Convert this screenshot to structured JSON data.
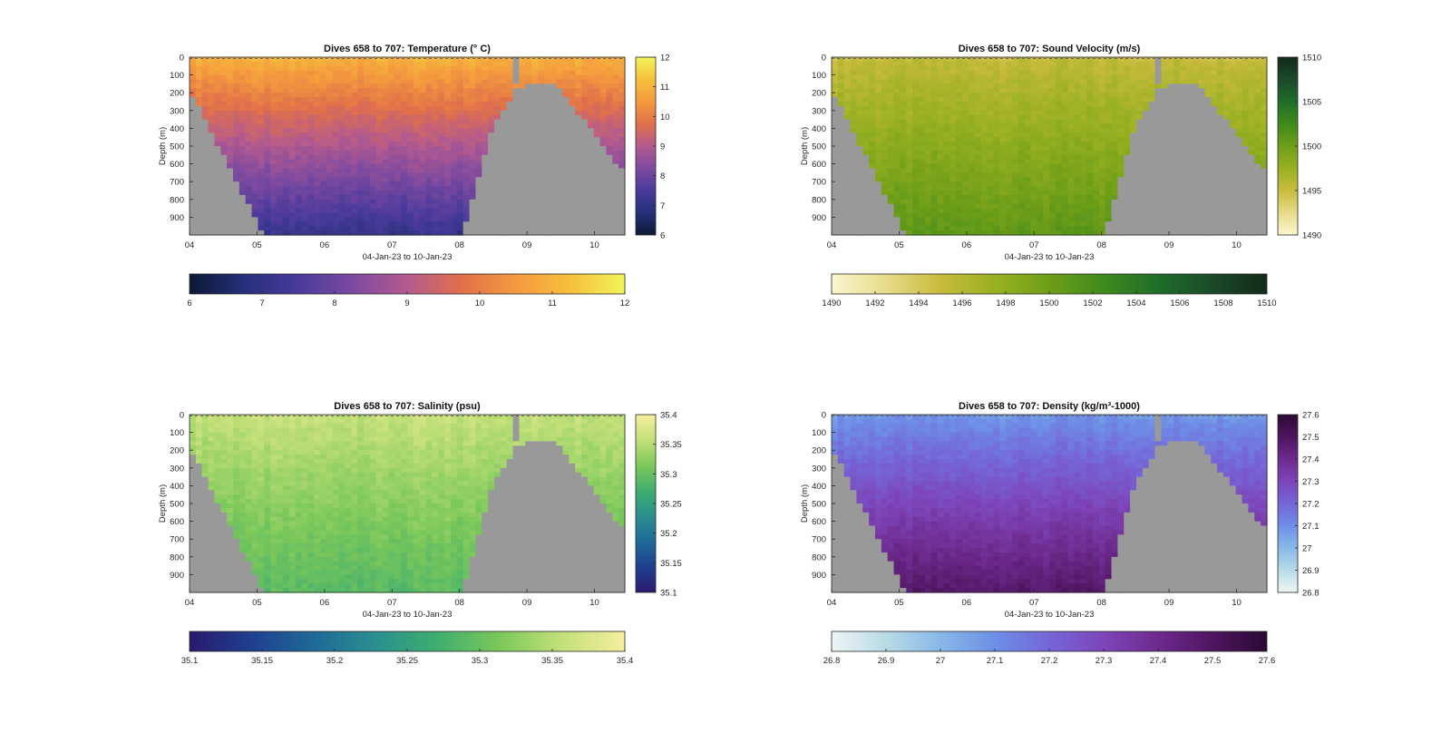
{
  "figure": {
    "panels": [
      {
        "id": "temperature",
        "title": "Dives 658 to 707: Temperature (° C)",
        "xlabel": "04-Jan-23 to 10-Jan-23",
        "ylabel": "Depth (m)",
        "yticks": [
          "0",
          "100",
          "200",
          "300",
          "400",
          "500",
          "600",
          "700",
          "800",
          "900"
        ],
        "xticks": [
          "04",
          "05",
          "06",
          "07",
          "08",
          "09",
          "10"
        ],
        "colormap": [
          "#0b1a33",
          "#25307a",
          "#4a3a9c",
          "#7d4aa0",
          "#b45a8f",
          "#e0704a",
          "#f49a3e",
          "#f6c03c",
          "#f2f45a"
        ],
        "clim": [
          6,
          12
        ],
        "cbar_vertical_ticks": [
          "6",
          "7",
          "8",
          "9",
          "10",
          "11",
          "12"
        ],
        "cbar_horizontal_ticks": [
          "6",
          "7",
          "8",
          "9",
          "10",
          "11",
          "12"
        ],
        "surface": 11.0,
        "deep": 7.1
      },
      {
        "id": "sound_velocity",
        "title": "Dives 658 to 707: Sound Velocity (m/s)",
        "xlabel": "04-Jan-23 to 10-Jan-23",
        "ylabel": "Depth (m)",
        "yticks": [
          "0",
          "100",
          "200",
          "300",
          "400",
          "500",
          "600",
          "700",
          "800",
          "900"
        ],
        "xticks": [
          "04",
          "05",
          "06",
          "07",
          "08",
          "09",
          "10"
        ],
        "colormap": [
          "#fbf6cf",
          "#e6db8a",
          "#c8bb3c",
          "#99b022",
          "#6e9e18",
          "#3f8a1c",
          "#1f6d2a",
          "#1a4a28",
          "#132a1a"
        ],
        "clim": [
          1490,
          1510
        ],
        "cbar_vertical_ticks": [
          "1490",
          "1495",
          "1500",
          "1505",
          "1510"
        ],
        "cbar_horizontal_ticks": [
          "1490",
          "1492",
          "1494",
          "1496",
          "1498",
          "1500",
          "1502",
          "1504",
          "1506",
          "1508",
          "1510"
        ],
        "surface": 1495.2,
        "deep": 1500.8
      },
      {
        "id": "salinity",
        "title": "Dives 658 to 707: Salinity (psu)",
        "xlabel": "04-Jan-23 to 10-Jan-23",
        "ylabel": "Depth (m)",
        "yticks": [
          "0",
          "100",
          "200",
          "300",
          "400",
          "500",
          "600",
          "700",
          "800",
          "900"
        ],
        "xticks": [
          "04",
          "05",
          "06",
          "07",
          "08",
          "09",
          "10"
        ],
        "colormap": [
          "#2a1a6e",
          "#1f3f8f",
          "#1f6a98",
          "#2a8f8f",
          "#3fae6e",
          "#7cc85a",
          "#c4e07a",
          "#f6ee9e"
        ],
        "clim": [
          35.1,
          35.4
        ],
        "cbar_vertical_ticks": [
          "35.1",
          "35.15",
          "35.2",
          "35.25",
          "35.3",
          "35.35",
          "35.4"
        ],
        "cbar_horizontal_ticks": [
          "35.1",
          "35.15",
          "35.2",
          "35.25",
          "35.3",
          "35.35",
          "35.4"
        ],
        "surface": 35.36,
        "deep": 35.29
      },
      {
        "id": "density",
        "title": "Dives 658 to 707: Density (kg/m³-1000)",
        "xlabel": "04-Jan-23 to 10-Jan-23",
        "ylabel": "Depth (m)",
        "yticks": [
          "0",
          "100",
          "200",
          "300",
          "400",
          "500",
          "600",
          "700",
          "800",
          "900"
        ],
        "xticks": [
          "04",
          "05",
          "06",
          "07",
          "08",
          "09",
          "10"
        ],
        "colormap": [
          "#eef5f4",
          "#b8dbe6",
          "#89b8e8",
          "#6d8fe6",
          "#7566d8",
          "#7d45b8",
          "#6e2a8e",
          "#4f1560",
          "#2a0a33"
        ],
        "clim": [
          26.8,
          27.6
        ],
        "cbar_vertical_ticks": [
          "26.8",
          "26.9",
          "27",
          "27.1",
          "27.2",
          "27.3",
          "27.4",
          "27.5",
          "27.6"
        ],
        "cbar_horizontal_ticks": [
          "26.8",
          "26.9",
          "27",
          "27.1",
          "27.2",
          "27.3",
          "27.4",
          "27.5",
          "27.6"
        ],
        "surface": 27.08,
        "deep": 27.48
      }
    ]
  },
  "chart_data": [
    {
      "type": "heatmap",
      "title": "Dives 658 to 707: Temperature (° C)",
      "xlabel": "04-Jan-23 to 10-Jan-23",
      "ylabel": "Depth (m)",
      "x_ticks": [
        "04",
        "05",
        "06",
        "07",
        "08",
        "09",
        "10"
      ],
      "y_ticks": [
        0,
        100,
        200,
        300,
        400,
        500,
        600,
        700,
        800,
        900
      ],
      "ylim": [
        0,
        1000
      ],
      "zlim": [
        6,
        12
      ],
      "profile": {
        "depth": [
          0,
          200,
          400,
          600,
          800,
          1000
        ],
        "value": [
          11.0,
          10.4,
          9.6,
          8.8,
          7.9,
          7.1
        ]
      }
    },
    {
      "type": "heatmap",
      "title": "Dives 658 to 707: Sound Velocity (m/s)",
      "xlabel": "04-Jan-23 to 10-Jan-23",
      "ylabel": "Depth (m)",
      "x_ticks": [
        "04",
        "05",
        "06",
        "07",
        "08",
        "09",
        "10"
      ],
      "y_ticks": [
        0,
        100,
        200,
        300,
        400,
        500,
        600,
        700,
        800,
        900
      ],
      "ylim": [
        0,
        1000
      ],
      "zlim": [
        1490,
        1510
      ],
      "profile": {
        "depth": [
          0,
          200,
          400,
          600,
          800,
          1000
        ],
        "value": [
          1495.2,
          1497.0,
          1498.5,
          1499.3,
          1500.0,
          1500.8
        ]
      }
    },
    {
      "type": "heatmap",
      "title": "Dives 658 to 707: Salinity (psu)",
      "xlabel": "04-Jan-23 to 10-Jan-23",
      "ylabel": "Depth (m)",
      "x_ticks": [
        "04",
        "05",
        "06",
        "07",
        "08",
        "09",
        "10"
      ],
      "y_ticks": [
        0,
        100,
        200,
        300,
        400,
        500,
        600,
        700,
        800,
        900
      ],
      "ylim": [
        0,
        1000
      ],
      "zlim": [
        35.1,
        35.4
      ],
      "profile": {
        "depth": [
          0,
          200,
          400,
          600,
          800,
          1000
        ],
        "value": [
          35.36,
          35.37,
          35.35,
          35.31,
          35.29,
          35.29
        ]
      }
    },
    {
      "type": "heatmap",
      "title": "Dives 658 to 707: Density (kg/m³-1000)",
      "xlabel": "04-Jan-23 to 10-Jan-23",
      "ylabel": "Depth (m)",
      "x_ticks": [
        "04",
        "05",
        "06",
        "07",
        "08",
        "09",
        "10"
      ],
      "y_ticks": [
        0,
        100,
        200,
        300,
        400,
        500,
        600,
        700,
        800,
        900
      ],
      "ylim": [
        0,
        1000
      ],
      "zlim": [
        26.8,
        27.6
      ],
      "profile": {
        "depth": [
          0,
          200,
          400,
          600,
          800,
          1000
        ],
        "value": [
          27.08,
          27.12,
          27.22,
          27.3,
          27.38,
          27.48
        ]
      }
    }
  ]
}
